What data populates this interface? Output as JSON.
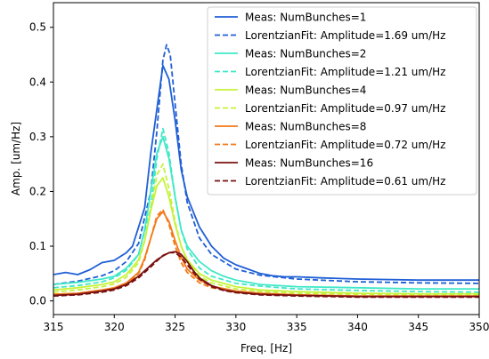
{
  "chart_data": {
    "type": "line",
    "title": "",
    "xlabel": "Freq. [Hz]",
    "ylabel": "Amp. [um/Hz]",
    "xlim": [
      315,
      350
    ],
    "ylim": [
      -0.025,
      0.545
    ],
    "xticks": [
      315,
      320,
      325,
      330,
      335,
      340,
      345,
      350
    ],
    "yticks": [
      0.0,
      0.1,
      0.2,
      0.3,
      0.4,
      0.5
    ],
    "ytick_labels": [
      "0.0",
      "0.1",
      "0.2",
      "0.3",
      "0.4",
      "0.5"
    ],
    "grid": false,
    "legend_position": "upper-right",
    "series": [
      {
        "name": "Meas: NumBunches=1",
        "color": "#1f5fd6",
        "style": "solid",
        "x": [
          315,
          316,
          317,
          318,
          319,
          320,
          321,
          321.5,
          322,
          322.5,
          323,
          323.5,
          324,
          324.5,
          325,
          325.5,
          326,
          327,
          328,
          329,
          330,
          331,
          332,
          333,
          334,
          335,
          337,
          340,
          345,
          350
        ],
        "y": [
          0.048,
          0.052,
          0.048,
          0.057,
          0.07,
          0.074,
          0.088,
          0.1,
          0.135,
          0.17,
          0.27,
          0.35,
          0.43,
          0.405,
          0.33,
          0.24,
          0.19,
          0.135,
          0.1,
          0.078,
          0.066,
          0.058,
          0.05,
          0.046,
          0.044,
          0.044,
          0.042,
          0.04,
          0.038,
          0.038
        ]
      },
      {
        "name": "LorentzianFit: Amplitude=1.69 um/Hz",
        "color": "#1f5fd6",
        "style": "dashed",
        "x": [
          315,
          317,
          319,
          320,
          321,
          322,
          323,
          323.5,
          324,
          324.3,
          324.6,
          325,
          325.5,
          326,
          327,
          328,
          330,
          332,
          335,
          340,
          345,
          350
        ],
        "y": [
          0.03,
          0.036,
          0.046,
          0.055,
          0.072,
          0.105,
          0.2,
          0.31,
          0.44,
          0.468,
          0.45,
          0.36,
          0.25,
          0.18,
          0.115,
          0.085,
          0.058,
          0.047,
          0.04,
          0.035,
          0.033,
          0.032
        ]
      },
      {
        "name": "Meas: NumBunches=2",
        "color": "#3fe8c8",
        "style": "solid",
        "x": [
          315,
          317,
          319,
          320,
          321,
          322,
          322.5,
          323,
          323.5,
          324,
          324.5,
          325,
          325.5,
          326,
          327,
          328,
          329,
          330,
          332,
          335,
          340,
          345,
          350
        ],
        "y": [
          0.03,
          0.034,
          0.04,
          0.045,
          0.06,
          0.085,
          0.13,
          0.2,
          0.27,
          0.3,
          0.26,
          0.19,
          0.13,
          0.1,
          0.072,
          0.055,
          0.045,
          0.038,
          0.03,
          0.026,
          0.024,
          0.022,
          0.022
        ]
      },
      {
        "name": "LorentzianFit: Amplitude=1.21 um/Hz",
        "color": "#3fe8c8",
        "style": "dashed",
        "x": [
          315,
          317,
          319,
          320,
          321,
          322,
          323,
          323.5,
          324,
          324.5,
          325,
          325.5,
          326,
          327,
          328,
          330,
          332,
          335,
          340,
          345,
          350
        ],
        "y": [
          0.024,
          0.028,
          0.035,
          0.042,
          0.056,
          0.085,
          0.17,
          0.26,
          0.315,
          0.27,
          0.19,
          0.13,
          0.095,
          0.06,
          0.045,
          0.032,
          0.027,
          0.022,
          0.019,
          0.017,
          0.016
        ]
      },
      {
        "name": "Meas: NumBunches=4",
        "color": "#c6f23a",
        "style": "solid",
        "x": [
          315,
          317,
          319,
          320,
          321,
          322,
          322.5,
          323,
          323.5,
          324,
          324.5,
          325,
          325.5,
          326,
          327,
          328,
          330,
          332,
          335,
          340,
          345,
          350
        ],
        "y": [
          0.02,
          0.024,
          0.03,
          0.035,
          0.048,
          0.075,
          0.11,
          0.165,
          0.21,
          0.225,
          0.19,
          0.14,
          0.1,
          0.075,
          0.05,
          0.038,
          0.026,
          0.02,
          0.017,
          0.014,
          0.013,
          0.013
        ]
      },
      {
        "name": "LorentzianFit: Amplitude=0.97 um/Hz",
        "color": "#c6f23a",
        "style": "dashed",
        "x": [
          315,
          317,
          319,
          320,
          321,
          322,
          322.5,
          323,
          323.5,
          324,
          324.5,
          325,
          325.5,
          326,
          327,
          328,
          330,
          332,
          335,
          340,
          345,
          350
        ],
        "y": [
          0.016,
          0.02,
          0.026,
          0.031,
          0.043,
          0.07,
          0.11,
          0.17,
          0.23,
          0.25,
          0.205,
          0.145,
          0.1,
          0.072,
          0.045,
          0.033,
          0.022,
          0.017,
          0.014,
          0.012,
          0.011,
          0.011
        ]
      },
      {
        "name": "Meas: NumBunches=8",
        "color": "#f27a1a",
        "style": "solid",
        "x": [
          315,
          317,
          319,
          320,
          321,
          322,
          322.5,
          323,
          323.5,
          324,
          324.5,
          325,
          325.5,
          326,
          327,
          328,
          330,
          332,
          335,
          340,
          345,
          350
        ],
        "y": [
          0.012,
          0.014,
          0.02,
          0.024,
          0.033,
          0.052,
          0.078,
          0.115,
          0.15,
          0.163,
          0.145,
          0.11,
          0.08,
          0.058,
          0.038,
          0.027,
          0.018,
          0.014,
          0.011,
          0.009,
          0.009,
          0.009
        ]
      },
      {
        "name": "LorentzianFit: Amplitude=0.72 um/Hz",
        "color": "#f27a1a",
        "style": "dashed",
        "x": [
          315,
          317,
          319,
          320,
          321,
          322,
          322.5,
          323,
          323.5,
          324,
          324.5,
          325,
          325.5,
          326,
          327,
          328,
          330,
          332,
          335,
          340,
          345,
          350
        ],
        "y": [
          0.01,
          0.012,
          0.017,
          0.021,
          0.03,
          0.05,
          0.075,
          0.115,
          0.155,
          0.167,
          0.14,
          0.1,
          0.07,
          0.052,
          0.033,
          0.024,
          0.016,
          0.012,
          0.01,
          0.008,
          0.008,
          0.008
        ]
      },
      {
        "name": "Meas: NumBunches=16",
        "color": "#7a1010",
        "style": "solid",
        "x": [
          315,
          317,
          319,
          320,
          321,
          322,
          323,
          323.5,
          324,
          324.5,
          325,
          325.5,
          326,
          326.5,
          327,
          328,
          329,
          330,
          332,
          335,
          340,
          345,
          350
        ],
        "y": [
          0.01,
          0.012,
          0.018,
          0.022,
          0.03,
          0.045,
          0.065,
          0.075,
          0.082,
          0.088,
          0.09,
          0.085,
          0.072,
          0.055,
          0.042,
          0.028,
          0.02,
          0.016,
          0.012,
          0.01,
          0.008,
          0.008,
          0.008
        ]
      },
      {
        "name": "LorentzianFit: Amplitude=0.61 um/Hz",
        "color": "#7a1010",
        "style": "dashed",
        "x": [
          315,
          317,
          319,
          320,
          321,
          322,
          323,
          323.5,
          324,
          324.5,
          325,
          325.5,
          326,
          326.5,
          327,
          328,
          329,
          330,
          332,
          335,
          340,
          345,
          350
        ],
        "y": [
          0.009,
          0.011,
          0.016,
          0.02,
          0.028,
          0.042,
          0.062,
          0.073,
          0.083,
          0.088,
          0.088,
          0.08,
          0.066,
          0.052,
          0.04,
          0.026,
          0.019,
          0.015,
          0.011,
          0.009,
          0.007,
          0.007,
          0.007
        ]
      }
    ]
  }
}
